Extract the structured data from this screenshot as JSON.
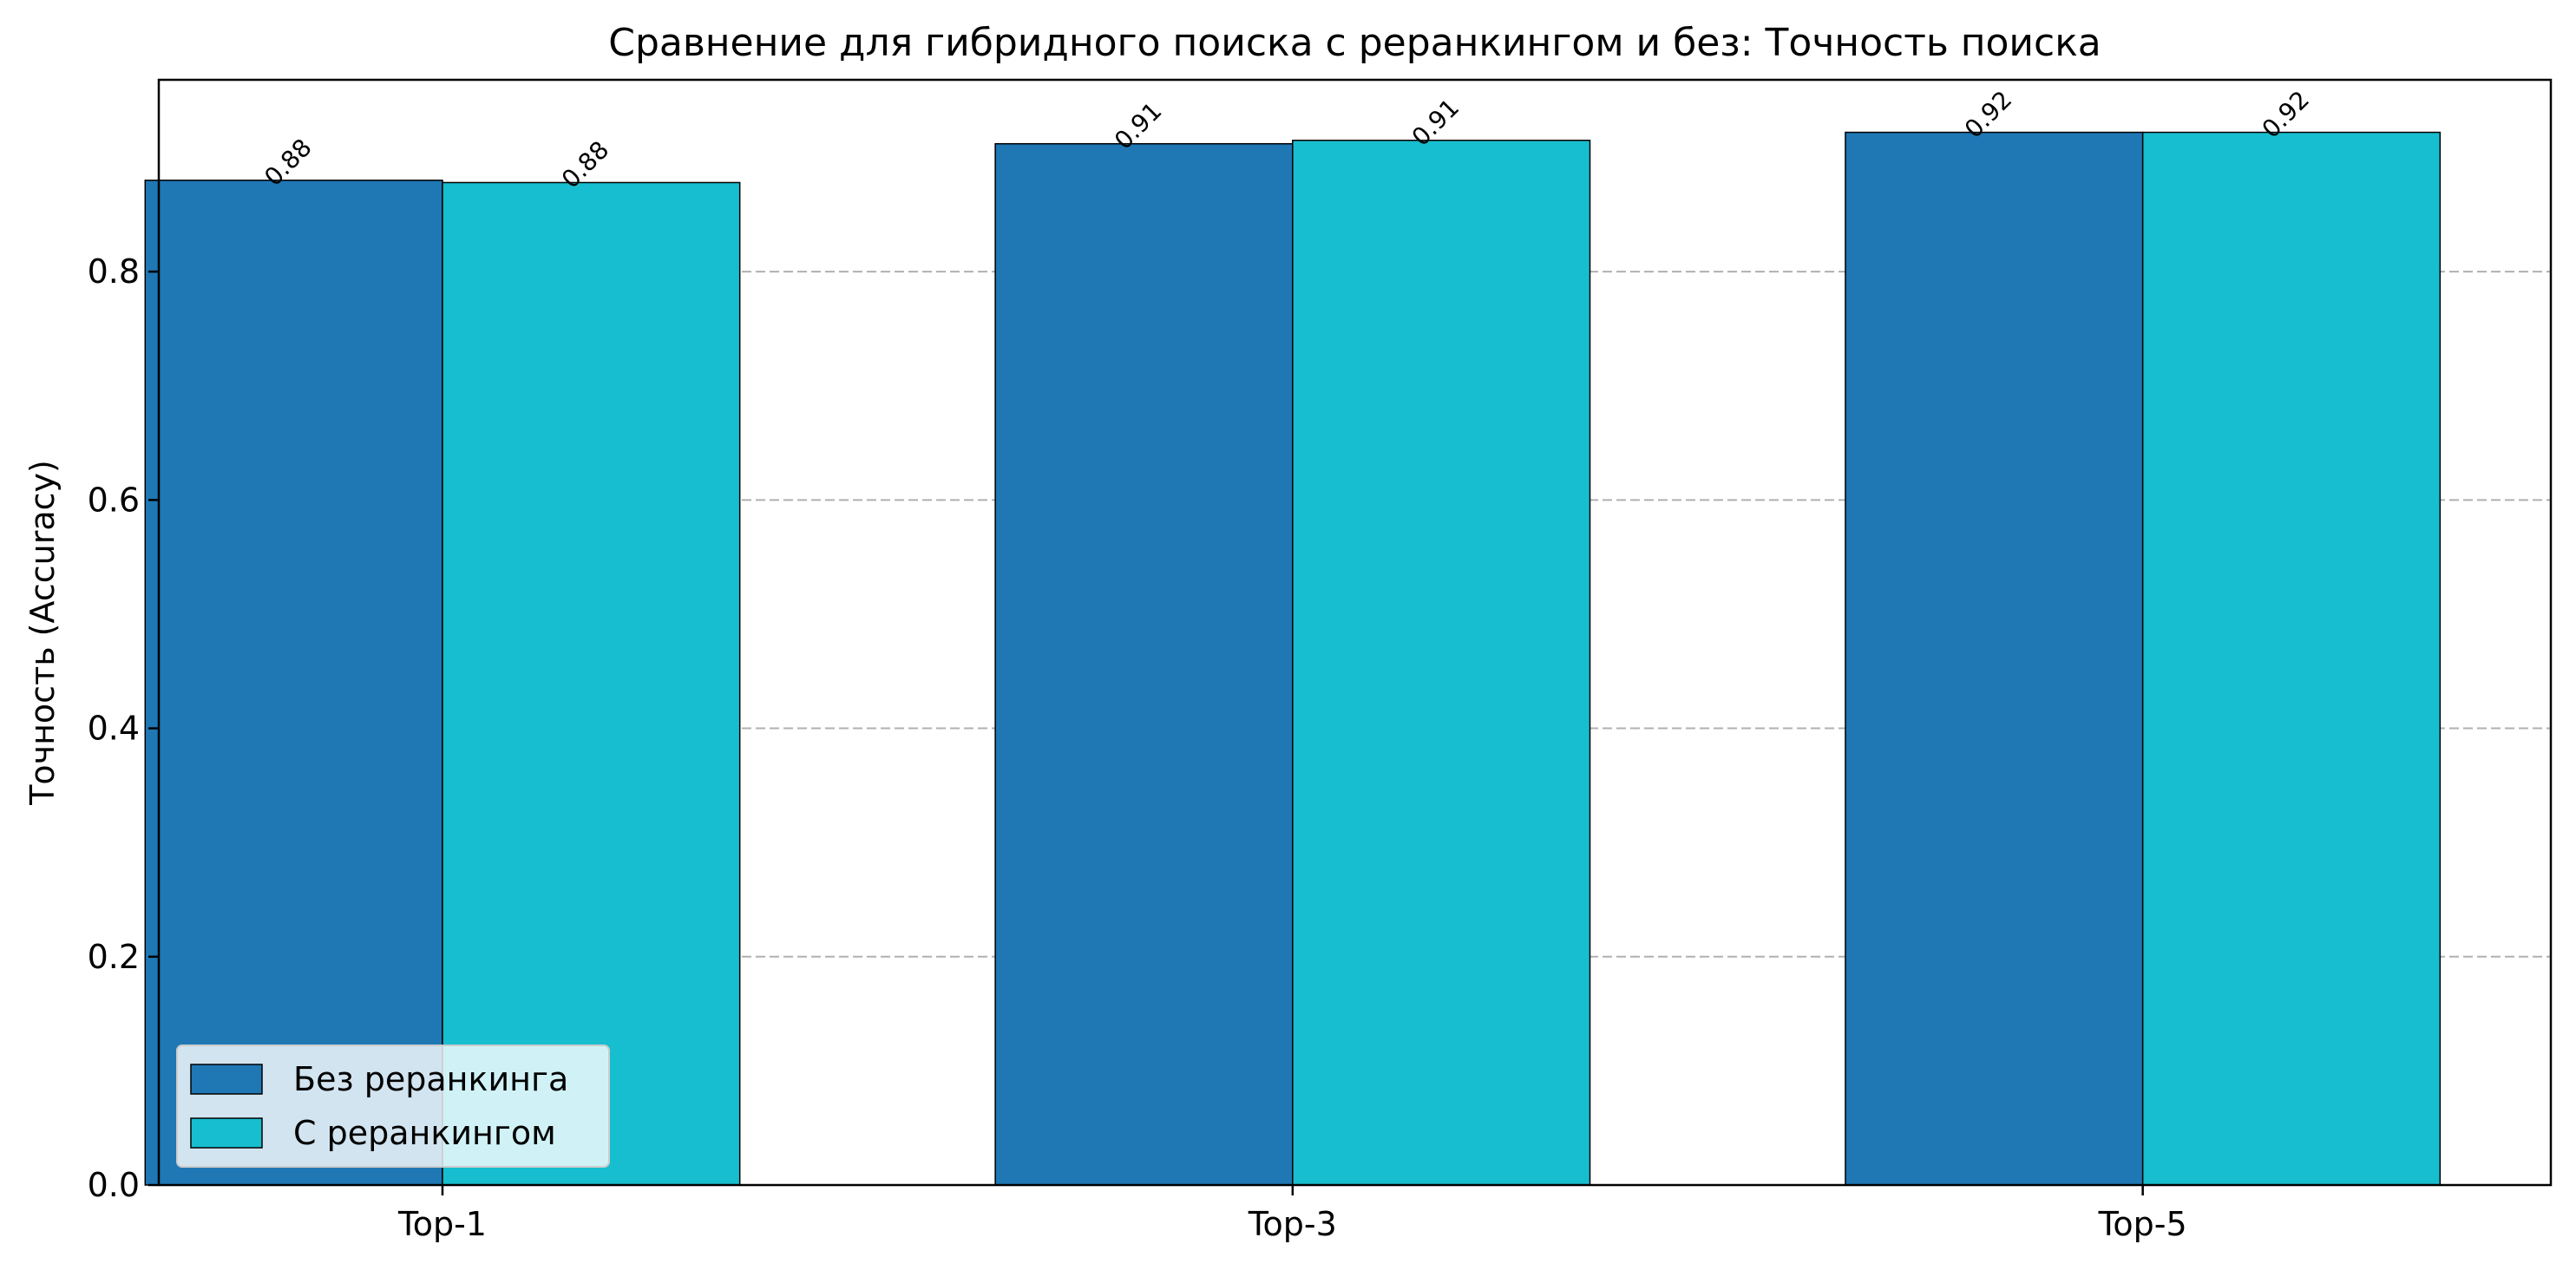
{
  "chart_data": {
    "type": "bar",
    "title": "Сравнение для гибридного поиска с реранкингом и без: Точность поиска",
    "xlabel": "",
    "ylabel": "Точность (Accuracy)",
    "categories": [
      "Top-1",
      "Top-3",
      "Top-5"
    ],
    "series": [
      {
        "name": "Без реранкинга",
        "values": [
          0.88,
          0.912,
          0.922
        ],
        "labels": [
          "0.88",
          "0.91",
          "0.92"
        ],
        "color": "#1f77b4"
      },
      {
        "name": "С реранкингом",
        "values": [
          0.878,
          0.915,
          0.922
        ],
        "labels": [
          "0.88",
          "0.91",
          "0.92"
        ],
        "color": "#17becf"
      }
    ],
    "ylim": [
      0,
      0.968
    ],
    "yticks": [
      0.0,
      0.2,
      0.4,
      0.6,
      0.8
    ],
    "ytick_labels": [
      "0.0",
      "0.2",
      "0.4",
      "0.6",
      "0.8"
    ],
    "grid": "y-dashed",
    "legend": "lower-left"
  }
}
